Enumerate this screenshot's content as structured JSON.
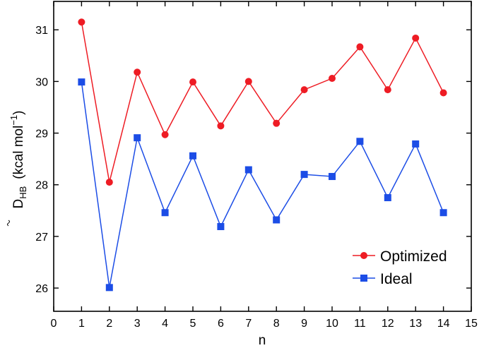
{
  "chart_data": {
    "type": "line",
    "xlabel": "n",
    "ylabel": {
      "symbol": "D",
      "subscript": "HB",
      "units_prefix": "(kcal mol",
      "units_exponent": "−1",
      "units_suffix": ")"
    },
    "xlim": [
      0,
      15
    ],
    "ylim": [
      25.55,
      31.55
    ],
    "x_ticks": [
      0,
      1,
      2,
      3,
      4,
      5,
      6,
      7,
      8,
      9,
      10,
      11,
      12,
      13,
      14,
      15
    ],
    "y_ticks": [
      26,
      27,
      28,
      29,
      30,
      31
    ],
    "grid": false,
    "legend_position": "bottom-right",
    "series": [
      {
        "name": "Optimized",
        "color": "#ee1c24",
        "marker": "circle",
        "x": [
          1,
          2,
          3,
          4,
          5,
          6,
          7,
          8,
          9,
          10,
          11,
          12,
          13,
          14
        ],
        "values": [
          31.15,
          28.05,
          30.18,
          28.97,
          29.99,
          29.14,
          30.0,
          29.19,
          29.84,
          30.06,
          30.67,
          29.84,
          30.84,
          29.78
        ]
      },
      {
        "name": "Ideal",
        "color": "#1c4de6",
        "marker": "square",
        "x": [
          1,
          2,
          3,
          4,
          5,
          6,
          7,
          8,
          9,
          10,
          11,
          12,
          13,
          14
        ],
        "values": [
          29.99,
          26.01,
          28.91,
          27.46,
          28.56,
          27.19,
          28.29,
          27.32,
          28.2,
          28.16,
          28.84,
          27.75,
          28.79,
          27.46
        ]
      }
    ]
  }
}
